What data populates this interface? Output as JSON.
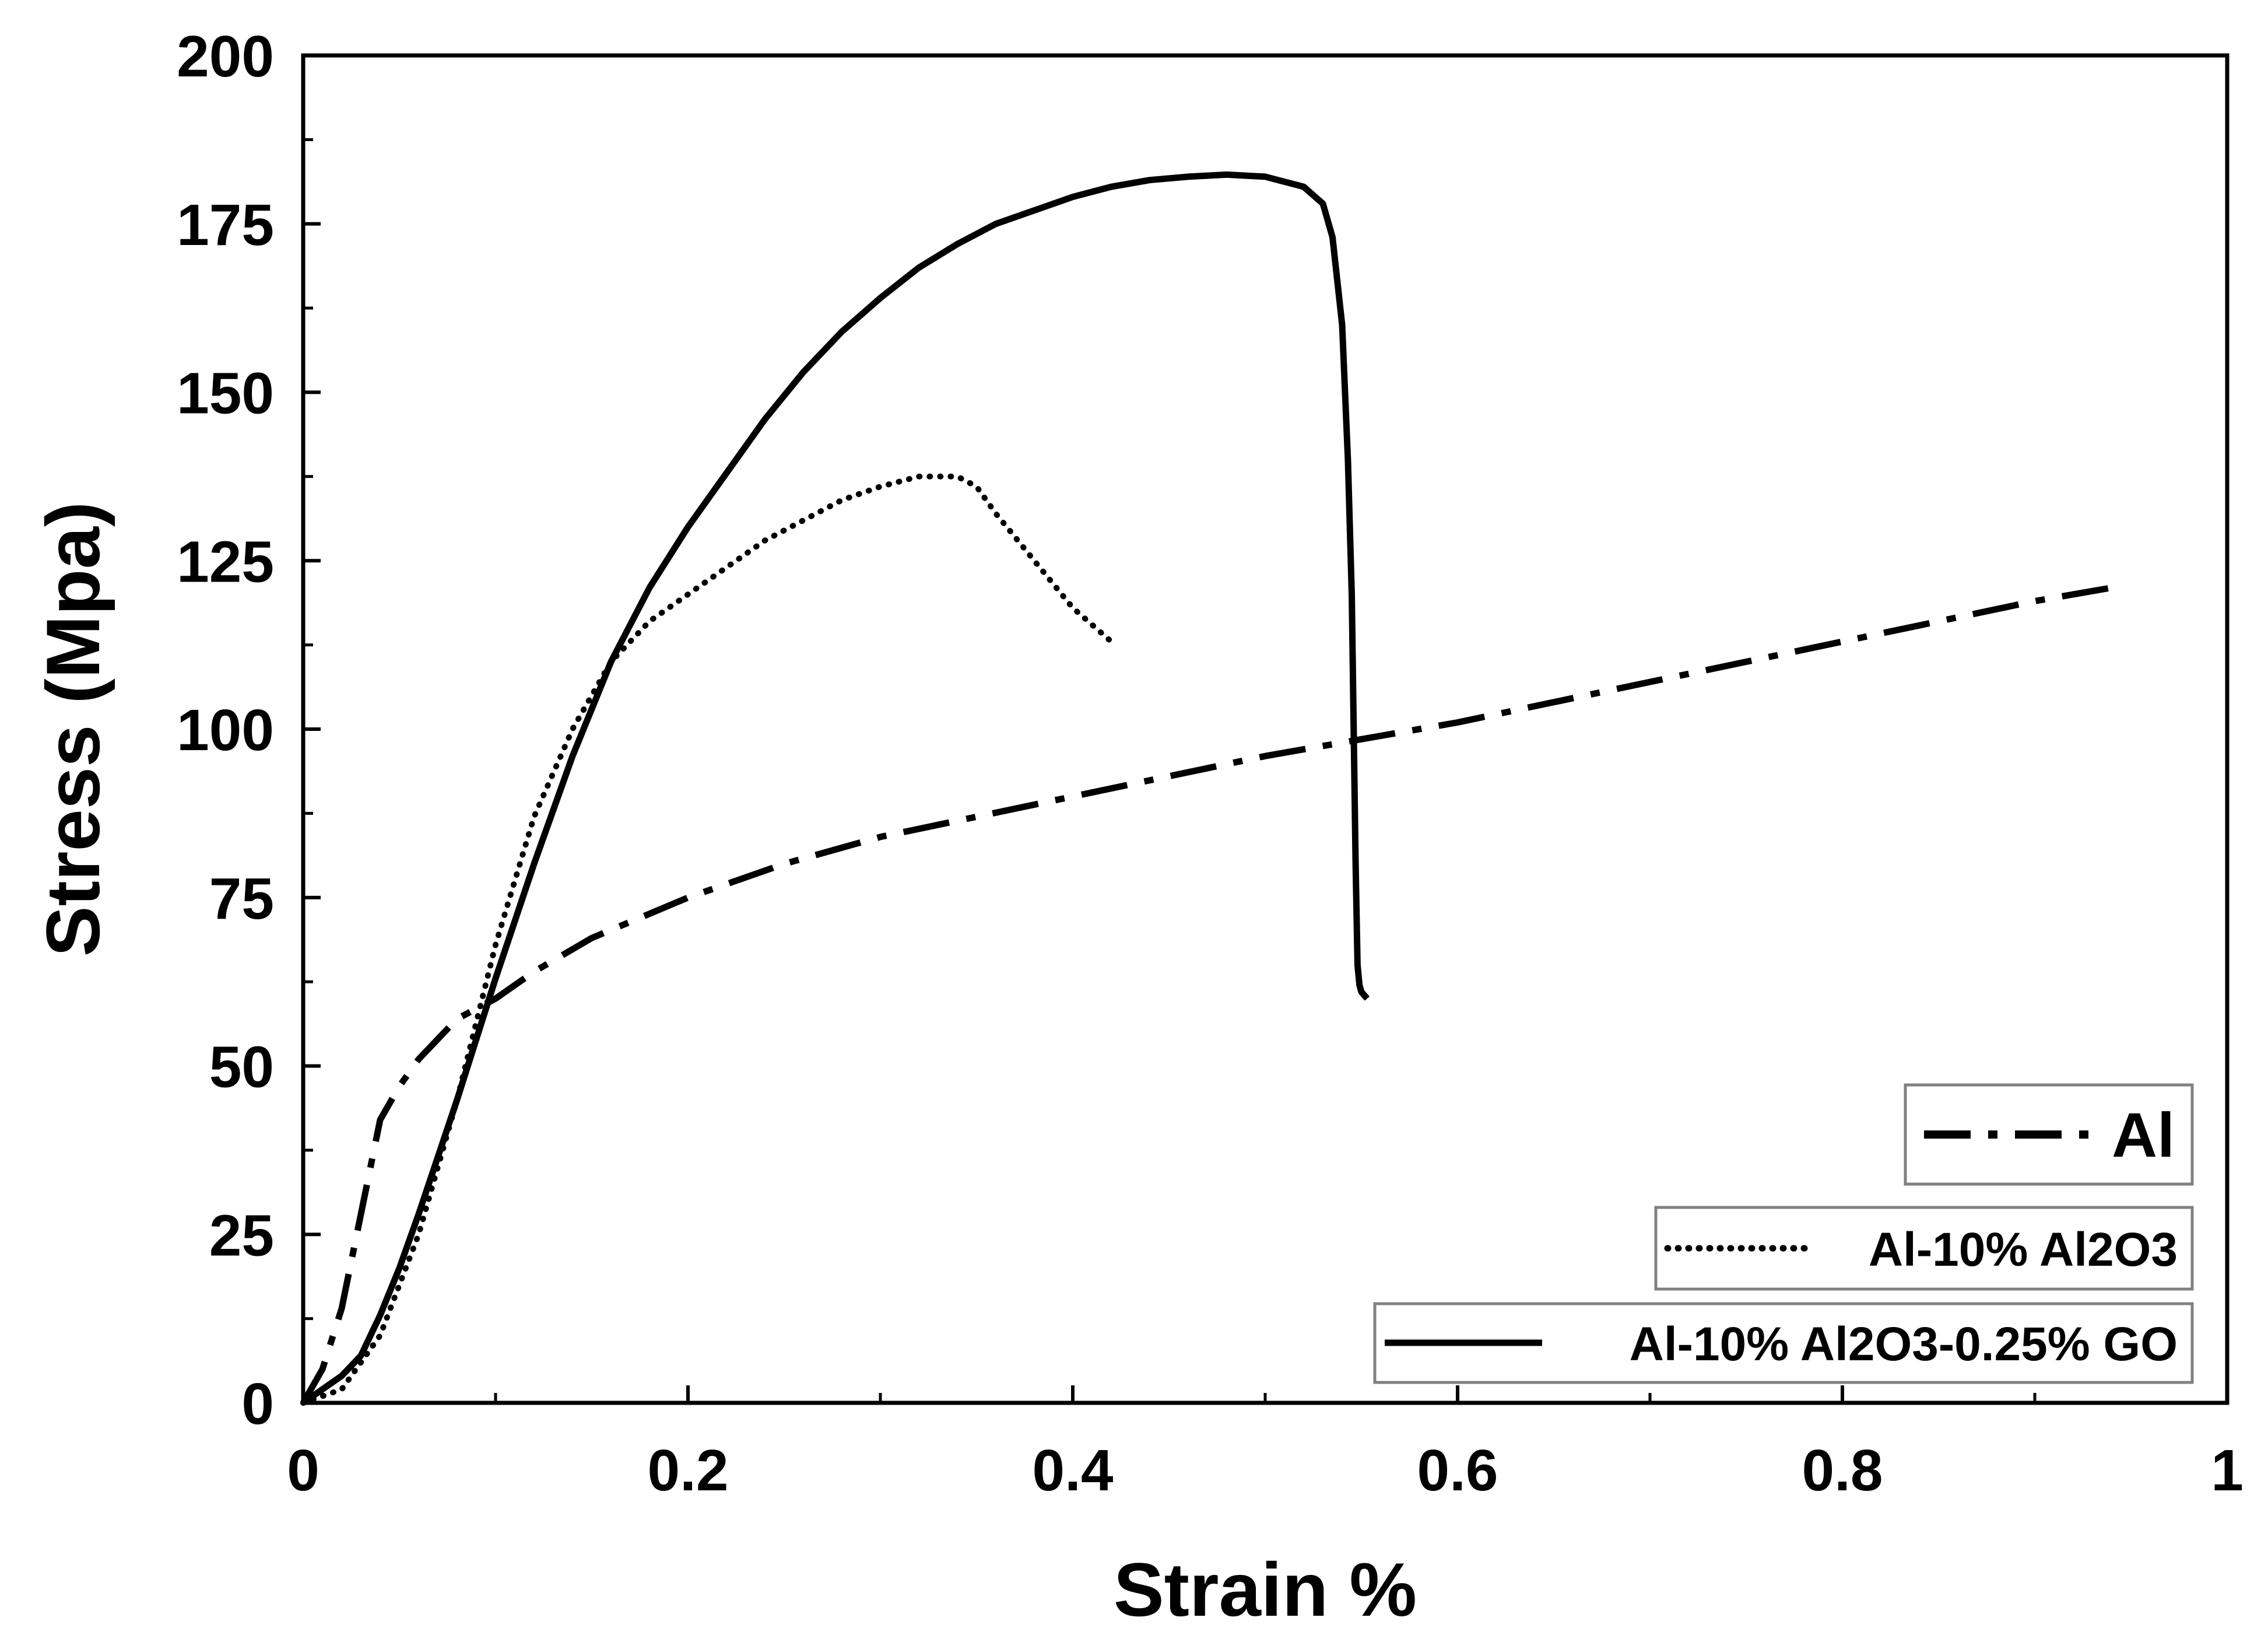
{
  "chart_data": {
    "type": "line",
    "title": "",
    "xlabel": "Strain %",
    "ylabel": "Stress (Mpa)",
    "xlim": [
      0,
      1
    ],
    "ylim": [
      0,
      200
    ],
    "xticks": [
      0,
      0.2,
      0.4,
      0.6,
      0.8,
      1
    ],
    "xtick_labels": [
      "0",
      "0.2",
      "0.4",
      "0.6",
      "0.8",
      "1"
    ],
    "yticks": [
      0,
      25,
      50,
      75,
      100,
      125,
      150,
      175,
      200
    ],
    "ytick_labels": [
      "0",
      "25",
      "50",
      "75",
      "100",
      "125",
      "150",
      "175",
      "200"
    ],
    "grid": false,
    "legend_position": "bottom-right",
    "series": [
      {
        "name": "Al",
        "style": "dash-dot",
        "x": [
          0,
          0.01,
          0.02,
          0.03,
          0.04,
          0.05,
          0.06,
          0.07,
          0.08,
          0.1,
          0.12,
          0.15,
          0.2,
          0.25,
          0.3,
          0.35,
          0.4,
          0.45,
          0.5,
          0.55,
          0.6,
          0.65,
          0.7,
          0.75,
          0.8,
          0.85,
          0.9,
          0.94
        ],
        "y": [
          0,
          5,
          14,
          28,
          42,
          47,
          51,
          54,
          57,
          60,
          64,
          69,
          75,
          80,
          84,
          87,
          90,
          93,
          96,
          98.5,
          101,
          104,
          107,
          110,
          113,
          116,
          119,
          121
        ]
      },
      {
        "name": "Al-10% Al2O3",
        "style": "dotted",
        "x": [
          0,
          0.02,
          0.04,
          0.06,
          0.08,
          0.1,
          0.12,
          0.14,
          0.16,
          0.18,
          0.2,
          0.22,
          0.24,
          0.26,
          0.28,
          0.3,
          0.32,
          0.34,
          0.35,
          0.36,
          0.38,
          0.4,
          0.42
        ],
        "y": [
          0,
          2,
          10,
          25,
          45,
          68,
          87,
          100,
          110,
          116,
          120,
          124,
          128,
          131,
          134,
          136,
          137.5,
          137.5,
          136,
          132,
          125,
          118,
          113
        ]
      },
      {
        "name": "Al-10% Al2O3-0.25% GO",
        "style": "solid",
        "x": [
          0,
          0.01,
          0.02,
          0.03,
          0.04,
          0.05,
          0.06,
          0.08,
          0.1,
          0.12,
          0.14,
          0.16,
          0.18,
          0.2,
          0.22,
          0.24,
          0.26,
          0.28,
          0.3,
          0.32,
          0.34,
          0.36,
          0.38,
          0.4,
          0.42,
          0.44,
          0.46,
          0.48,
          0.5,
          0.52,
          0.53,
          0.535,
          0.54,
          0.543,
          0.545,
          0.546,
          0.547,
          0.548,
          0.549,
          0.55,
          0.553
        ],
        "y": [
          0,
          2,
          4,
          7,
          13,
          20,
          28,
          45,
          63,
          80,
          96,
          110,
          121,
          130,
          138,
          146,
          153,
          159,
          164,
          168.5,
          172,
          175,
          177,
          179,
          180.5,
          181.5,
          182,
          182.3,
          182,
          180.5,
          178,
          173,
          160,
          140,
          120,
          100,
          80,
          65,
          62,
          61,
          60
        ]
      }
    ]
  }
}
